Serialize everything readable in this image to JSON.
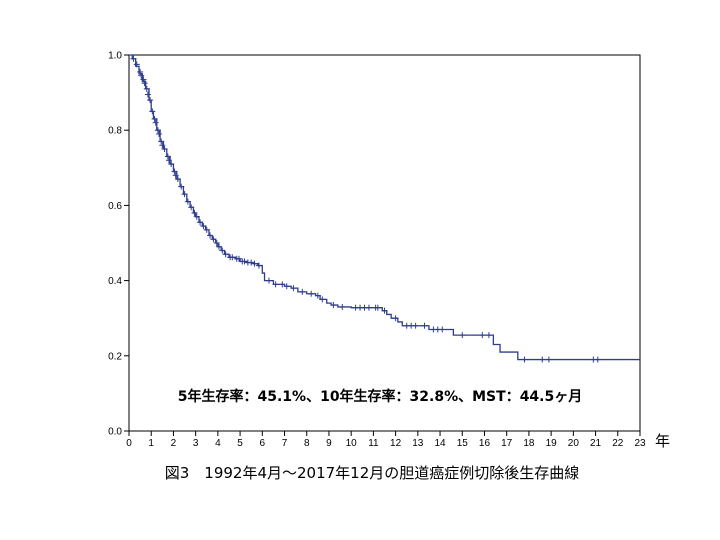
{
  "chart_data": {
    "type": "line",
    "title": "",
    "xlabel": "",
    "ylabel": "",
    "x_unit": "年",
    "xlim": [
      0,
      23
    ],
    "ylim": [
      0,
      1
    ],
    "x_ticks": [
      0,
      1,
      2,
      3,
      4,
      5,
      6,
      7,
      8,
      9,
      10,
      11,
      12,
      13,
      14,
      15,
      16,
      17,
      18,
      19,
      20,
      21,
      22,
      23
    ],
    "y_ticks": [
      "0.0",
      "0.2",
      "0.4",
      "0.6",
      "0.8",
      "1.0"
    ],
    "grid": false,
    "legend": "none",
    "series": [
      {
        "color": "#2e3d8f",
        "step": true,
        "points": [
          [
            0,
            1.0
          ],
          [
            0.15,
            0.99
          ],
          [
            0.3,
            0.97
          ],
          [
            0.45,
            0.95
          ],
          [
            0.6,
            0.93
          ],
          [
            0.75,
            0.91
          ],
          [
            0.9,
            0.88
          ],
          [
            1.0,
            0.85
          ],
          [
            1.1,
            0.83
          ],
          [
            1.25,
            0.8
          ],
          [
            1.4,
            0.77
          ],
          [
            1.55,
            0.75
          ],
          [
            1.7,
            0.73
          ],
          [
            1.85,
            0.71
          ],
          [
            2.0,
            0.69
          ],
          [
            2.15,
            0.67
          ],
          [
            2.3,
            0.65
          ],
          [
            2.45,
            0.63
          ],
          [
            2.6,
            0.61
          ],
          [
            2.75,
            0.595
          ],
          [
            2.9,
            0.58
          ],
          [
            3.0,
            0.57
          ],
          [
            3.15,
            0.555
          ],
          [
            3.3,
            0.545
          ],
          [
            3.45,
            0.535
          ],
          [
            3.6,
            0.52
          ],
          [
            3.75,
            0.51
          ],
          [
            3.9,
            0.5
          ],
          [
            4.0,
            0.49
          ],
          [
            4.15,
            0.48
          ],
          [
            4.3,
            0.47
          ],
          [
            4.5,
            0.462
          ],
          [
            4.8,
            0.458
          ],
          [
            5.0,
            0.451
          ],
          [
            5.3,
            0.448
          ],
          [
            5.6,
            0.445
          ],
          [
            5.8,
            0.44
          ],
          [
            6.0,
            0.42
          ],
          [
            6.1,
            0.4
          ],
          [
            6.5,
            0.39
          ],
          [
            7.0,
            0.385
          ],
          [
            7.3,
            0.38
          ],
          [
            7.6,
            0.37
          ],
          [
            8.0,
            0.365
          ],
          [
            8.4,
            0.36
          ],
          [
            8.6,
            0.35
          ],
          [
            8.9,
            0.34
          ],
          [
            9.1,
            0.335
          ],
          [
            9.4,
            0.33
          ],
          [
            10.0,
            0.328
          ],
          [
            11.0,
            0.328
          ],
          [
            11.4,
            0.32
          ],
          [
            11.6,
            0.31
          ],
          [
            11.8,
            0.3
          ],
          [
            12.1,
            0.29
          ],
          [
            12.3,
            0.28
          ],
          [
            13.0,
            0.28
          ],
          [
            13.5,
            0.27
          ],
          [
            14.5,
            0.27
          ],
          [
            14.6,
            0.255
          ],
          [
            15.5,
            0.255
          ],
          [
            16.0,
            0.255
          ],
          [
            16.4,
            0.23
          ],
          [
            16.7,
            0.21
          ],
          [
            17.5,
            0.19
          ],
          [
            19.0,
            0.19
          ],
          [
            21.0,
            0.19
          ],
          [
            23.0,
            0.19
          ]
        ],
        "censor_marks": [
          [
            0.2,
            0.99
          ],
          [
            0.35,
            0.975
          ],
          [
            0.5,
            0.955
          ],
          [
            0.55,
            0.945
          ],
          [
            0.65,
            0.935
          ],
          [
            0.7,
            0.925
          ],
          [
            0.8,
            0.91
          ],
          [
            0.85,
            0.895
          ],
          [
            0.95,
            0.88
          ],
          [
            1.05,
            0.85
          ],
          [
            1.15,
            0.83
          ],
          [
            1.2,
            0.82
          ],
          [
            1.3,
            0.8
          ],
          [
            1.35,
            0.79
          ],
          [
            1.45,
            0.77
          ],
          [
            1.5,
            0.76
          ],
          [
            1.6,
            0.75
          ],
          [
            1.75,
            0.73
          ],
          [
            1.8,
            0.72
          ],
          [
            1.9,
            0.71
          ],
          [
            2.05,
            0.69
          ],
          [
            2.1,
            0.68
          ],
          [
            2.2,
            0.67
          ],
          [
            2.35,
            0.65
          ],
          [
            2.5,
            0.63
          ],
          [
            2.65,
            0.61
          ],
          [
            2.8,
            0.595
          ],
          [
            2.95,
            0.58
          ],
          [
            3.05,
            0.57
          ],
          [
            3.2,
            0.555
          ],
          [
            3.35,
            0.545
          ],
          [
            3.5,
            0.535
          ],
          [
            3.65,
            0.52
          ],
          [
            3.8,
            0.51
          ],
          [
            3.95,
            0.5
          ],
          [
            4.05,
            0.49
          ],
          [
            4.2,
            0.48
          ],
          [
            4.35,
            0.47
          ],
          [
            4.55,
            0.462
          ],
          [
            4.65,
            0.462
          ],
          [
            4.85,
            0.458
          ],
          [
            4.95,
            0.458
          ],
          [
            5.1,
            0.451
          ],
          [
            5.2,
            0.451
          ],
          [
            5.35,
            0.448
          ],
          [
            5.5,
            0.448
          ],
          [
            5.65,
            0.445
          ],
          [
            5.85,
            0.44
          ],
          [
            6.3,
            0.4
          ],
          [
            6.6,
            0.39
          ],
          [
            6.9,
            0.39
          ],
          [
            7.1,
            0.385
          ],
          [
            7.4,
            0.38
          ],
          [
            7.8,
            0.37
          ],
          [
            8.2,
            0.365
          ],
          [
            8.5,
            0.36
          ],
          [
            8.7,
            0.35
          ],
          [
            9.2,
            0.335
          ],
          [
            9.6,
            0.33
          ],
          [
            10.2,
            0.328
          ],
          [
            10.4,
            0.328
          ],
          [
            10.6,
            0.328
          ],
          [
            10.8,
            0.328
          ],
          [
            11.1,
            0.328
          ],
          [
            11.2,
            0.328
          ],
          [
            11.5,
            0.32
          ],
          [
            12.0,
            0.3
          ],
          [
            12.5,
            0.28
          ],
          [
            12.7,
            0.28
          ],
          [
            12.9,
            0.28
          ],
          [
            13.3,
            0.28
          ],
          [
            13.7,
            0.27
          ],
          [
            13.9,
            0.27
          ],
          [
            14.1,
            0.27
          ],
          [
            15.0,
            0.255
          ],
          [
            15.9,
            0.255
          ],
          [
            16.2,
            0.255
          ],
          [
            17.8,
            0.19
          ],
          [
            18.6,
            0.19
          ],
          [
            18.9,
            0.19
          ],
          [
            20.9,
            0.19
          ],
          [
            21.1,
            0.19
          ]
        ]
      }
    ],
    "annotation": "5年生存率：45.1%、10年生存率：32.8%、MST：44.5ヶ月"
  },
  "caption": "図3　1992年4月～2017年12月の胆道癌症例切除後生存曲線"
}
